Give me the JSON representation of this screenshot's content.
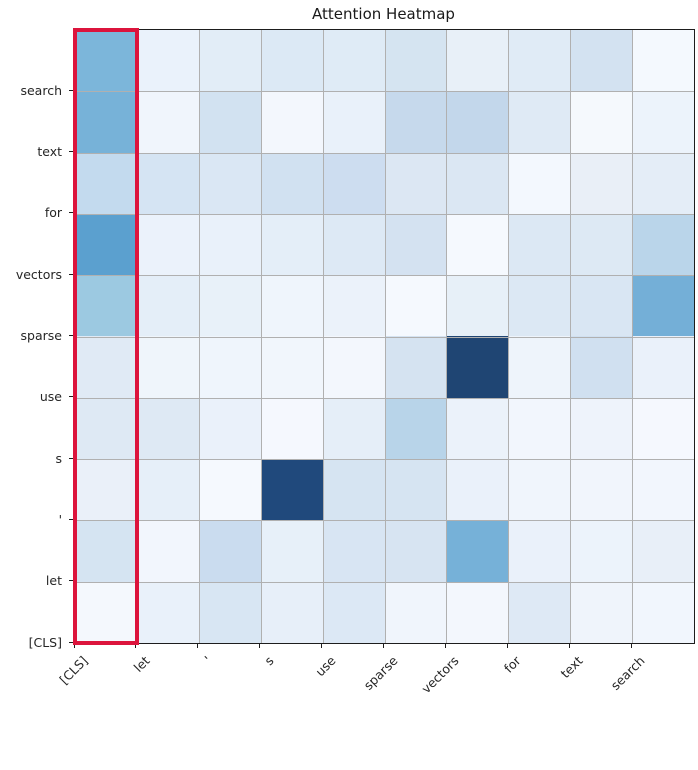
{
  "title": "Attention Heatmap",
  "chart_data": {
    "type": "heatmap",
    "title": "Attention Heatmap",
    "colormap": "Blues",
    "grid": true,
    "value_range": [
      0,
      1
    ],
    "x_labels": [
      "[CLS]",
      "let",
      "'",
      "s",
      "use",
      "sparse",
      "vectors",
      "for",
      "text",
      "search"
    ],
    "y_labels": [
      "search",
      "text",
      "for",
      "vectors",
      "sparse",
      "use",
      "s",
      "'",
      "let",
      "[CLS]"
    ],
    "values": [
      [
        0.46,
        0.06,
        0.1,
        0.13,
        0.12,
        0.17,
        0.08,
        0.11,
        0.18,
        0.02
      ],
      [
        0.47,
        0.04,
        0.19,
        0.03,
        0.07,
        0.25,
        0.27,
        0.12,
        0.01,
        0.06
      ],
      [
        0.26,
        0.17,
        0.15,
        0.19,
        0.22,
        0.14,
        0.14,
        0.02,
        0.08,
        0.1
      ],
      [
        0.55,
        0.06,
        0.07,
        0.1,
        0.13,
        0.18,
        0.01,
        0.13,
        0.13,
        0.29
      ],
      [
        0.38,
        0.1,
        0.08,
        0.05,
        0.06,
        0.01,
        0.08,
        0.13,
        0.15,
        0.48
      ],
      [
        0.12,
        0.05,
        0.05,
        0.04,
        0.03,
        0.17,
        0.97,
        0.05,
        0.2,
        0.07
      ],
      [
        0.12,
        0.12,
        0.07,
        0.01,
        0.09,
        0.3,
        0.06,
        0.03,
        0.05,
        0.01
      ],
      [
        0.07,
        0.09,
        0.01,
        0.93,
        0.17,
        0.17,
        0.07,
        0.04,
        0.04,
        0.03
      ],
      [
        0.17,
        0.03,
        0.23,
        0.08,
        0.16,
        0.16,
        0.47,
        0.07,
        0.06,
        0.08
      ],
      [
        0.02,
        0.07,
        0.16,
        0.08,
        0.13,
        0.04,
        0.03,
        0.12,
        0.05,
        0.04
      ]
    ],
    "colors": [
      [
        "#7cb6da",
        "#eaf2fb",
        "#e2edf7",
        "#dce9f5",
        "#dfebf6",
        "#d5e4f1",
        "#e8f0f8",
        "#e0ebf6",
        "#d3e2f1",
        "#f4f9fe"
      ],
      [
        "#77b2d8",
        "#f0f5fc",
        "#d2e2f1",
        "#f3f7fd",
        "#e9f1fa",
        "#c6d9ec",
        "#c3d7eb",
        "#dfeaf5",
        "#f5f9fd",
        "#ecf3fb"
      ],
      [
        "#c3daee",
        "#d5e4f3",
        "#dae7f4",
        "#d1e1f1",
        "#cdddf0",
        "#dce7f3",
        "#dbe7f3",
        "#f3f8fe",
        "#e9eff7",
        "#e4edf7"
      ],
      [
        "#5ba0cf",
        "#ebf2fb",
        "#e9f1fa",
        "#e4eef8",
        "#dde9f5",
        "#d4e2f1",
        "#f5f9fe",
        "#dce8f4",
        "#dde9f4",
        "#bad5ea"
      ],
      [
        "#9cc9e1",
        "#e4eef8",
        "#e8f1f9",
        "#eff5fc",
        "#ebf2fa",
        "#f5f9fe",
        "#e7f0f8",
        "#dce8f4",
        "#d9e6f3",
        "#74afd7"
      ],
      [
        "#e0eaf5",
        "#eff5fb",
        "#eff5fc",
        "#f1f6fc",
        "#f3f7fd",
        "#d5e3f1",
        "#1f4573",
        "#eef4fb",
        "#d0e0f0",
        "#eaf1fa"
      ],
      [
        "#dee9f4",
        "#dee9f4",
        "#eaf1fa",
        "#f5f8fe",
        "#e5eef8",
        "#b8d4e9",
        "#ebf2fa",
        "#f2f6fd",
        "#eef3fb",
        "#f5f8fe"
      ],
      [
        "#eaf0f9",
        "#e6eff9",
        "#f5f9fe",
        "#20497c",
        "#d6e4f2",
        "#d6e4f2",
        "#eaf1fa",
        "#f0f5fc",
        "#f1f5fc",
        "#f2f6fd"
      ],
      [
        "#d5e4f2",
        "#f2f6fd",
        "#cadcef",
        "#e7f0f9",
        "#d8e5f3",
        "#d7e4f2",
        "#76b1d8",
        "#eaf1fa",
        "#ecf3fb",
        "#e8eff8"
      ],
      [
        "#f4f8fd",
        "#e9f1fa",
        "#d8e6f3",
        "#e7eff9",
        "#dce8f5",
        "#f0f5fc",
        "#f3f7fd",
        "#dee9f5",
        "#eff4fb",
        "#f1f6fd"
      ]
    ],
    "highlight": {
      "shape": "rect",
      "column_label": "[CLS]",
      "column_index": 0,
      "color": "#dc143c"
    }
  },
  "styles": {
    "grid_color": "#b0b0b0",
    "spine_color": "#1d1d1d",
    "background": "#ffffff"
  }
}
